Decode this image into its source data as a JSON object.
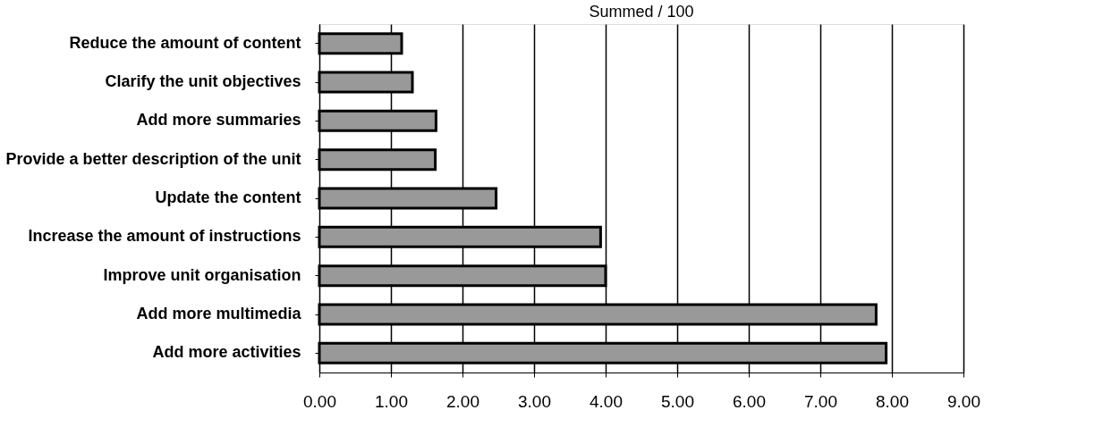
{
  "chart_data": {
    "type": "bar",
    "orientation": "horizontal",
    "title": "Summed / 100",
    "categories": [
      "Reduce the amount of content",
      "Clarify the unit objectives",
      "Add more summaries",
      "Provide a better description of the unit",
      "Update the content",
      "Increase the amount of instructions",
      "Improve unit organisation",
      "Add more multimedia",
      "Add more activities"
    ],
    "values": [
      1.15,
      1.3,
      1.63,
      1.62,
      2.47,
      3.93,
      4.0,
      7.78,
      7.92
    ],
    "color": "#999999",
    "xlim": [
      0,
      9
    ],
    "xticks": [
      {
        "value": 0,
        "label": "0.00"
      },
      {
        "value": 1,
        "label": "1.00"
      },
      {
        "value": 2,
        "label": "2.00"
      },
      {
        "value": 3,
        "label": "3.00"
      },
      {
        "value": 4,
        "label": "4.00"
      },
      {
        "value": 5,
        "label": "5.00"
      },
      {
        "value": 6,
        "label": "6.00"
      },
      {
        "value": 7,
        "label": "7.00"
      },
      {
        "value": 8,
        "label": "8.00"
      },
      {
        "value": 9,
        "label": "9.00"
      }
    ],
    "grid": "x"
  }
}
